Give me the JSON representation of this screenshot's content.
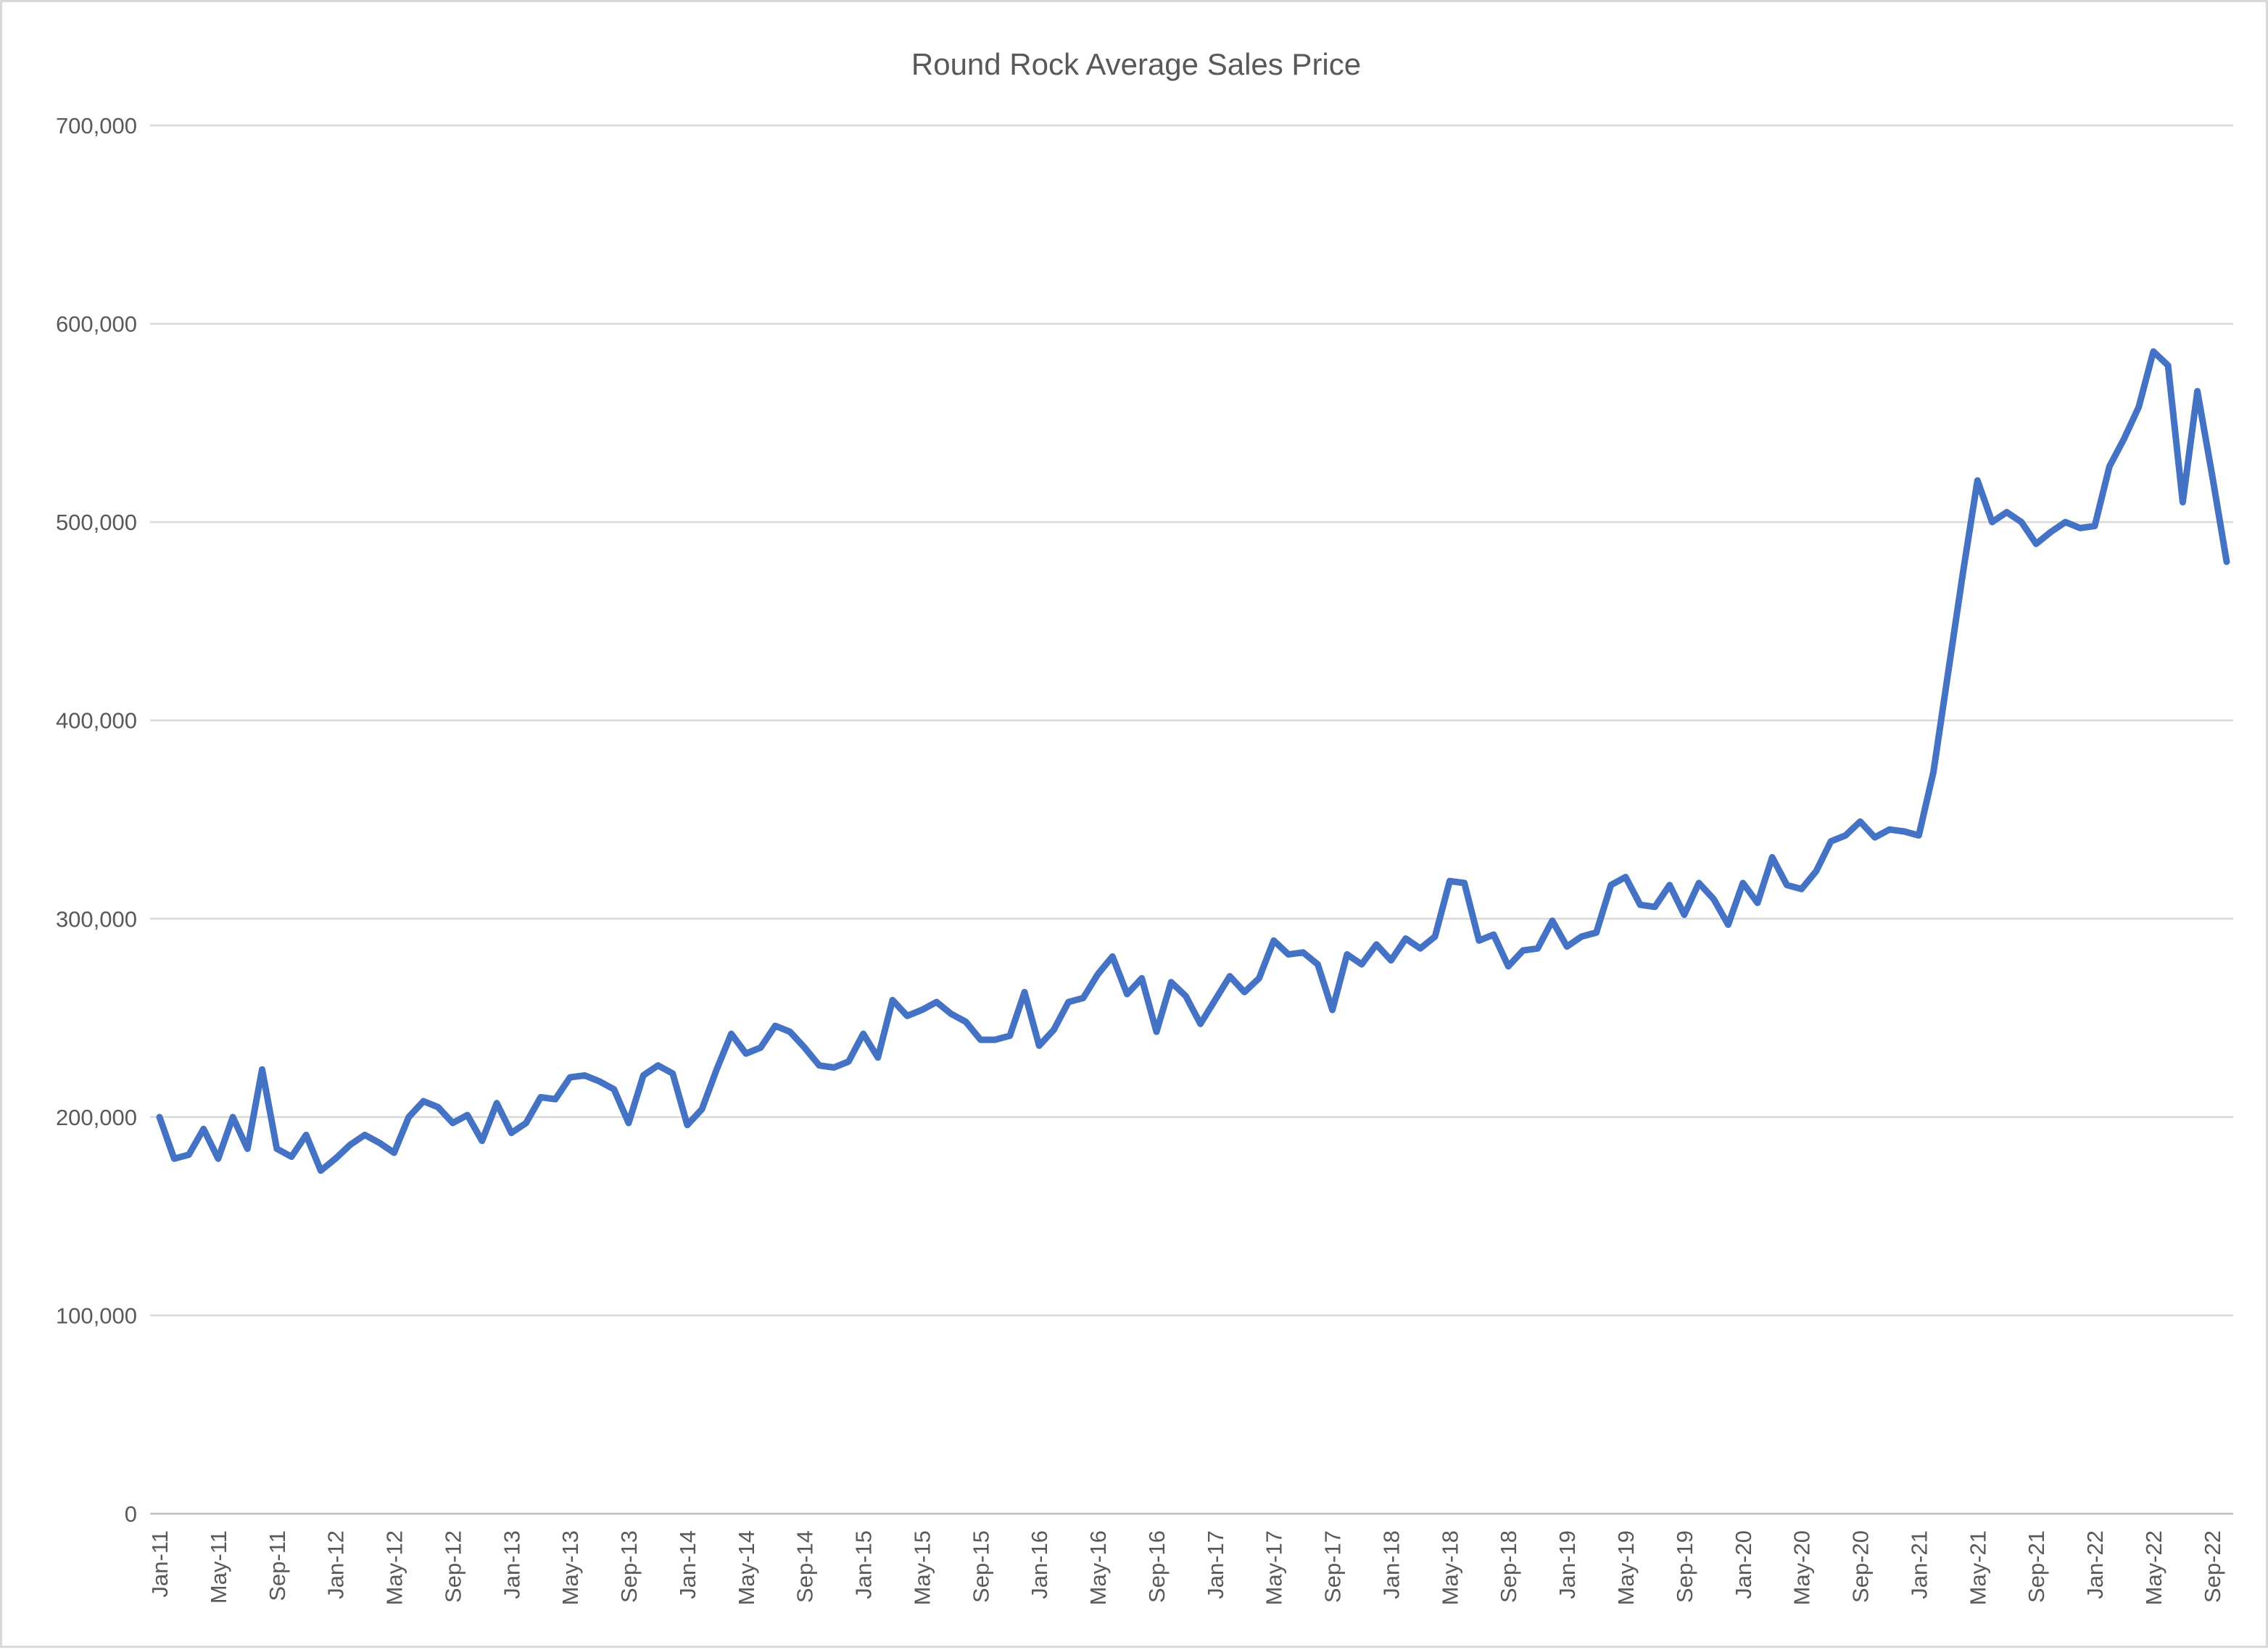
{
  "chart_data": {
    "type": "line",
    "title": "Round Rock Average Sales Price",
    "xlabel": "",
    "ylabel": "",
    "ylim": [
      0,
      700000
    ],
    "y_ticks": [
      0,
      100000,
      200000,
      300000,
      400000,
      500000,
      600000,
      700000
    ],
    "y_tick_labels": [
      "0",
      "100,000",
      "200,000",
      "300,000",
      "400,000",
      "500,000",
      "600,000",
      "700,000"
    ],
    "grid": "horizontal",
    "legend_position": "none",
    "line_color": "#4472C4",
    "gridline_color": "#d9d9d9",
    "axis_line_color": "#bfbfbf",
    "text_color": "#595959",
    "x_tick_every": 4,
    "x_tick_labels": [
      "Jan-11",
      "May-11",
      "Sep-11",
      "Jan-12",
      "May-12",
      "Sep-12",
      "Jan-13",
      "May-13",
      "Sep-13",
      "Jan-14",
      "May-14",
      "Sep-14",
      "Jan-15",
      "May-15",
      "Sep-15",
      "Jan-16",
      "May-16",
      "Sep-16",
      "Jan-17",
      "May-17",
      "Sep-17",
      "Jan-18",
      "May-18",
      "Sep-18",
      "Jan-19",
      "May-19",
      "Sep-19",
      "Jan-20",
      "May-20",
      "Sep-20",
      "Jan-21",
      "May-21",
      "Sep-21",
      "Jan-22",
      "May-22",
      "Sep-22"
    ],
    "categories": [
      "Jan-11",
      "Feb-11",
      "Mar-11",
      "Apr-11",
      "May-11",
      "Jun-11",
      "Jul-11",
      "Aug-11",
      "Sep-11",
      "Oct-11",
      "Nov-11",
      "Dec-11",
      "Jan-12",
      "Feb-12",
      "Mar-12",
      "Apr-12",
      "May-12",
      "Jun-12",
      "Jul-12",
      "Aug-12",
      "Sep-12",
      "Oct-12",
      "Nov-12",
      "Dec-12",
      "Jan-13",
      "Feb-13",
      "Mar-13",
      "Apr-13",
      "May-13",
      "Jun-13",
      "Jul-13",
      "Aug-13",
      "Sep-13",
      "Oct-13",
      "Nov-13",
      "Dec-13",
      "Jan-14",
      "Feb-14",
      "Mar-14",
      "Apr-14",
      "May-14",
      "Jun-14",
      "Jul-14",
      "Aug-14",
      "Sep-14",
      "Oct-14",
      "Nov-14",
      "Dec-14",
      "Jan-15",
      "Feb-15",
      "Mar-15",
      "Apr-15",
      "May-15",
      "Jun-15",
      "Jul-15",
      "Aug-15",
      "Sep-15",
      "Oct-15",
      "Nov-15",
      "Dec-15",
      "Jan-16",
      "Feb-16",
      "Mar-16",
      "Apr-16",
      "May-16",
      "Jun-16",
      "Jul-16",
      "Aug-16",
      "Sep-16",
      "Oct-16",
      "Nov-16",
      "Dec-16",
      "Jan-17",
      "Feb-17",
      "Mar-17",
      "Apr-17",
      "May-17",
      "Jun-17",
      "Jul-17",
      "Aug-17",
      "Sep-17",
      "Oct-17",
      "Nov-17",
      "Dec-17",
      "Jan-18",
      "Feb-18",
      "Mar-18",
      "Apr-18",
      "May-18",
      "Jun-18",
      "Jul-18",
      "Aug-18",
      "Sep-18",
      "Oct-18",
      "Nov-18",
      "Dec-18",
      "Jan-19",
      "Feb-19",
      "Mar-19",
      "Apr-19",
      "May-19",
      "Jun-19",
      "Jul-19",
      "Aug-19",
      "Sep-19",
      "Oct-19",
      "Nov-19",
      "Dec-19",
      "Jan-20",
      "Feb-20",
      "Mar-20",
      "Apr-20",
      "May-20",
      "Jun-20",
      "Jul-20",
      "Aug-20",
      "Sep-20",
      "Oct-20",
      "Nov-20",
      "Dec-20",
      "Jan-21",
      "Feb-21",
      "Mar-21",
      "Apr-21",
      "May-21",
      "Jun-21",
      "Jul-21",
      "Aug-21",
      "Sep-21",
      "Oct-21",
      "Nov-21",
      "Dec-21",
      "Jan-22",
      "Feb-22",
      "Mar-22",
      "Apr-22",
      "May-22",
      "Jun-22",
      "Jul-22",
      "Aug-22",
      "Sep-22",
      "Oct-22"
    ],
    "series": [
      {
        "name": "Average Sales Price",
        "values": [
          200000,
          179000,
          181000,
          194000,
          179000,
          200000,
          184000,
          224000,
          184000,
          180000,
          191000,
          173000,
          179000,
          186000,
          191000,
          187000,
          182000,
          200000,
          208000,
          205000,
          197000,
          201000,
          188000,
          207000,
          192000,
          197000,
          210000,
          209000,
          220000,
          221000,
          218000,
          214000,
          197000,
          221000,
          226000,
          222000,
          196000,
          204000,
          224000,
          242000,
          232000,
          235000,
          246000,
          243000,
          235000,
          226000,
          225000,
          228000,
          242000,
          230000,
          259000,
          251000,
          254000,
          258000,
          252000,
          248000,
          239000,
          239000,
          241000,
          263000,
          236000,
          244000,
          258000,
          260000,
          272000,
          281000,
          262000,
          270000,
          243000,
          268000,
          261000,
          247000,
          259000,
          271000,
          263000,
          270000,
          289000,
          282000,
          283000,
          277000,
          254000,
          282000,
          277000,
          287000,
          279000,
          290000,
          285000,
          291000,
          319000,
          318000,
          289000,
          292000,
          276000,
          284000,
          285000,
          299000,
          286000,
          291000,
          293000,
          317000,
          321000,
          307000,
          306000,
          317000,
          302000,
          318000,
          310000,
          297000,
          318000,
          308000,
          331000,
          317000,
          315000,
          324000,
          339000,
          342000,
          349000,
          341000,
          345000,
          344000,
          342000,
          374000,
          424000,
          474000,
          521000,
          500000,
          505000,
          500000,
          489000,
          495000,
          500000,
          497000,
          498000,
          528000,
          542000,
          558000,
          586000,
          579000,
          510000,
          566000,
          524000,
          480000
        ]
      }
    ]
  }
}
